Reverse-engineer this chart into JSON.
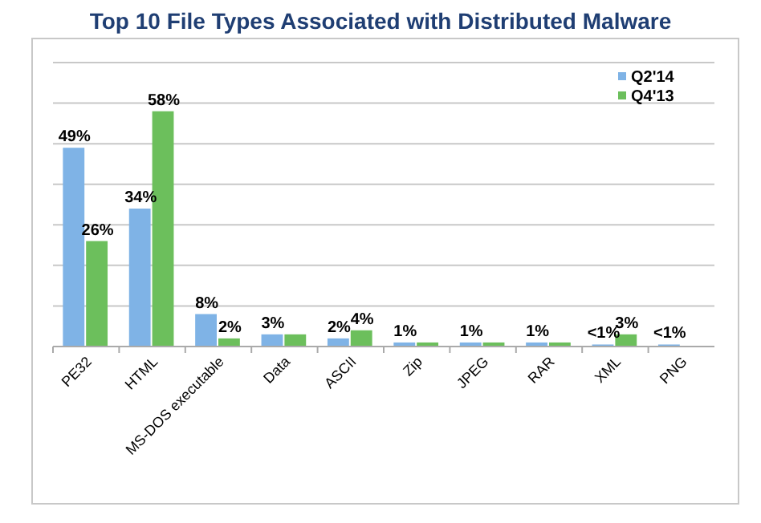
{
  "chart_data": {
    "type": "bar",
    "title": "Top 10 File Types Associated with Distributed Malware",
    "categories": [
      "PE32",
      "HTML",
      "MS-DOS executable",
      "Data",
      "ASCII",
      "Zip",
      "JPEG",
      "RAR",
      "XML",
      "PNG"
    ],
    "series": [
      {
        "name": "Q2'14",
        "color": "#7fb3e6",
        "values": [
          49,
          34,
          8,
          3,
          2,
          1,
          1,
          1,
          0.5,
          0.5
        ],
        "value_labels": [
          "49%",
          "34%",
          "8%",
          "3%",
          "2%",
          "1%",
          "1%",
          "1%",
          "<1%",
          "<1%"
        ]
      },
      {
        "name": "Q4'13",
        "color": "#6cbf5c",
        "values": [
          26,
          58,
          2,
          3,
          4,
          1,
          1,
          1,
          3,
          null
        ],
        "value_labels": [
          "26%",
          "58%",
          "2%",
          null,
          "4%",
          null,
          null,
          null,
          "3%",
          null
        ]
      }
    ],
    "ylim": [
      0,
      70
    ],
    "yticks": [
      {
        "value": 0,
        "label": null
      },
      {
        "value": 10,
        "label": null
      },
      {
        "value": 20,
        "label": null
      },
      {
        "value": 30,
        "label": null
      },
      {
        "value": 40,
        "label": null
      },
      {
        "value": 50,
        "label": null
      },
      {
        "value": 60,
        "label": null
      },
      {
        "value": 70,
        "label": null
      }
    ],
    "tick_labels": "x",
    "grid": "y",
    "legend": "top right"
  }
}
